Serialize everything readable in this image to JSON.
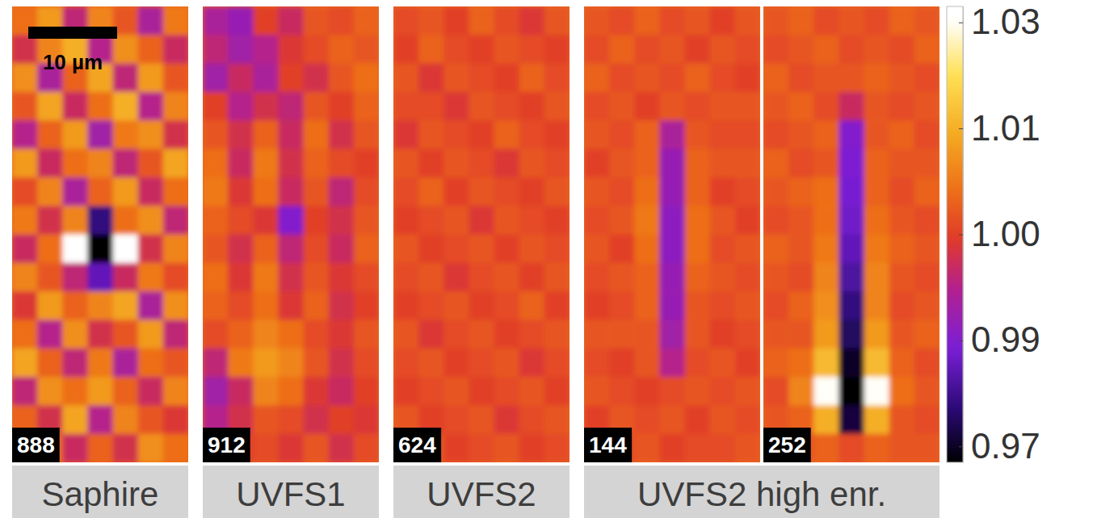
{
  "chart_data": {
    "type": "heatmap",
    "scale_bar_label": "10 µm",
    "colorbar_range": [
      0.965,
      1.035
    ],
    "colorbar_ticks": [
      0.97,
      0.99,
      {
        "value": 1.0,
        "label": "1.00"
      },
      1.01,
      1.03
    ],
    "groups": [
      {
        "label": "Saphire",
        "panels": [
          {
            "label": "888",
            "cells": [
              [
                1.004,
                1.008,
                0.996,
                1.006,
                1.002,
                0.994,
                1.005
              ],
              [
                0.998,
                1.006,
                1.01,
                0.995,
                1.007,
                1.003,
                0.997
              ],
              [
                1.007,
                0.994,
                1.003,
                1.009,
                0.996,
                1.008,
                1.002
              ],
              [
                1.002,
                1.009,
                0.997,
                1.004,
                1.01,
                0.995,
                1.006
              ],
              [
                0.995,
                1.003,
                1.008,
                0.993,
                1.005,
                1.007,
                0.998
              ],
              [
                1.008,
                0.997,
                1.004,
                1.006,
                0.996,
                1.002,
                1.009
              ],
              [
                1.001,
                1.006,
                0.994,
                1.003,
                1.008,
                0.997,
                1.004
              ],
              [
                1.005,
                0.998,
                1.006,
                0.978,
                1.004,
                1.007,
                0.996
              ],
              [
                0.997,
                1.004,
                1.035,
                0.965,
                1.035,
                0.998,
                1.006
              ],
              [
                1.006,
                1.002,
                0.996,
                0.985,
                0.997,
                1.005,
                1.001
              ],
              [
                0.999,
                1.008,
                1.003,
                1.006,
                1.009,
                0.994,
                1.007
              ],
              [
                1.004,
                0.995,
                1.007,
                0.998,
                1.002,
                1.008,
                0.996
              ],
              [
                1.009,
                1.003,
                0.996,
                1.005,
                0.994,
                1.004,
                1.002
              ],
              [
                0.996,
                1.007,
                1.004,
                1.008,
                1.003,
                0.997,
                1.006
              ],
              [
                1.003,
                0.998,
                1.009,
                0.995,
                1.006,
                1.002,
                0.999
              ],
              [
                1.006,
                1.004,
                0.997,
                1.003,
                0.998,
                1.007,
                1.004
              ]
            ]
          }
        ]
      },
      {
        "label": "UVFS1",
        "panels": [
          {
            "label": "912",
            "cells": [
              [
                0.994,
                0.992,
                1.0,
                0.997,
                1.002,
                1.001,
                1.003
              ],
              [
                0.996,
                0.993,
                0.995,
                0.999,
                1.001,
                1.003,
                1.002
              ],
              [
                0.993,
                0.997,
                0.994,
                1.0,
                0.998,
                1.002,
                1.004
              ],
              [
                1.0,
                0.995,
                0.998,
                0.996,
                1.002,
                1.0,
                1.003
              ],
              [
                1.002,
                0.998,
                1.003,
                0.997,
                1.004,
                0.998,
                1.002
              ],
              [
                1.004,
                0.997,
                1.005,
                0.998,
                1.003,
                1.001,
                1.0
              ],
              [
                1.005,
                0.999,
                1.004,
                0.997,
                1.002,
                0.996,
                1.001
              ],
              [
                1.003,
                1.001,
                0.999,
                0.99,
                1.0,
                0.998,
                1.002
              ],
              [
                1.002,
                0.998,
                1.003,
                0.996,
                1.001,
                0.997,
                1.003
              ],
              [
                1.004,
                0.999,
                1.005,
                0.998,
                1.002,
                0.999,
                1.001
              ],
              [
                1.003,
                1.001,
                1.004,
                0.999,
                1.003,
                0.998,
                1.0
              ],
              [
                1.001,
                1.003,
                1.006,
                1.004,
                1.001,
                0.999,
                1.002
              ],
              [
                0.996,
                1.005,
                1.008,
                1.006,
                1.002,
                0.998,
                1.001
              ],
              [
                0.993,
                0.997,
                1.006,
                1.004,
                0.999,
                0.997,
                1.0
              ],
              [
                0.995,
                0.998,
                1.002,
                1.001,
                0.998,
                1.0,
                0.999
              ],
              [
                0.997,
                1.0,
                1.001,
                0.999,
                1.002,
                0.998,
                1.001
              ]
            ]
          }
        ]
      },
      {
        "label": "UVFS2",
        "panels": [
          {
            "label": "624",
            "cells": [
              [
                1.001,
                1.002,
                1.0,
                1.003,
                1.001,
                0.999,
                1.002
              ],
              [
                1.0,
                1.003,
                1.001,
                1.0,
                1.002,
                1.001,
                1.0
              ],
              [
                1.002,
                0.999,
                1.002,
                1.001,
                1.0,
                1.003,
                1.001
              ],
              [
                1.001,
                1.001,
                0.999,
                1.002,
                1.001,
                1.0,
                1.002
              ],
              [
                0.999,
                1.002,
                1.001,
                1.0,
                1.003,
                1.001,
                1.0
              ],
              [
                1.002,
                1.0,
                1.002,
                1.001,
                0.999,
                1.002,
                1.001
              ],
              [
                1.001,
                1.003,
                1.0,
                1.002,
                1.001,
                1.0,
                1.002
              ],
              [
                1.0,
                1.001,
                1.002,
                0.999,
                1.002,
                1.001,
                1.0
              ],
              [
                1.002,
                1.0,
                1.001,
                1.002,
                1.0,
                1.002,
                1.001
              ],
              [
                1.001,
                1.002,
                0.999,
                1.001,
                1.002,
                1.0,
                1.002
              ],
              [
                1.0,
                1.001,
                1.002,
                1.0,
                1.001,
                1.003,
                1.0
              ],
              [
                1.002,
                0.999,
                1.001,
                1.002,
                1.0,
                1.001,
                1.002
              ],
              [
                1.001,
                1.002,
                1.0,
                1.001,
                1.002,
                0.999,
                1.001
              ],
              [
                1.0,
                1.001,
                1.002,
                1.0,
                1.001,
                1.002,
                1.0
              ],
              [
                1.002,
                1.0,
                1.001,
                1.002,
                0.999,
                1.001,
                1.002
              ],
              [
                1.001,
                1.002,
                1.0,
                1.001,
                1.002,
                1.0,
                1.001
              ]
            ]
          }
        ]
      },
      {
        "label": "UVFS2 high enr.",
        "panels": [
          {
            "label": "144",
            "cells": [
              [
                1.002,
                1.001,
                1.003,
                1.001,
                1.002,
                1.0,
                1.002
              ],
              [
                1.001,
                1.003,
                1.001,
                1.002,
                1.0,
                1.002,
                1.001
              ],
              [
                1.003,
                1.001,
                1.002,
                1.001,
                1.003,
                1.001,
                1.0
              ],
              [
                1.001,
                1.002,
                1.0,
                1.002,
                1.001,
                1.002,
                1.002
              ],
              [
                1.002,
                1.001,
                1.003,
                0.994,
                1.002,
                1.001,
                1.001
              ],
              [
                1.0,
                1.002,
                1.003,
                0.992,
                1.003,
                1.002,
                1.002
              ],
              [
                1.002,
                1.001,
                1.004,
                0.992,
                1.003,
                1.0,
                1.001
              ],
              [
                1.001,
                1.002,
                1.005,
                0.991,
                1.004,
                1.002,
                1.0
              ],
              [
                1.002,
                1.0,
                1.004,
                0.991,
                1.004,
                1.001,
                1.002
              ],
              [
                1.001,
                1.002,
                1.003,
                0.992,
                1.003,
                1.002,
                1.001
              ],
              [
                1.0,
                1.001,
                1.003,
                0.992,
                1.002,
                1.001,
                1.002
              ],
              [
                1.002,
                1.002,
                1.002,
                0.993,
                1.002,
                1.0,
                1.001
              ],
              [
                1.001,
                1.0,
                1.002,
                0.995,
                1.001,
                1.002,
                1.0
              ],
              [
                1.002,
                1.001,
                1.0,
                1.001,
                1.002,
                1.001,
                1.002
              ],
              [
                1.0,
                1.002,
                1.001,
                1.002,
                1.0,
                1.002,
                1.001
              ],
              [
                1.001,
                1.001,
                1.002,
                1.0,
                1.001,
                1.001,
                1.002
              ]
            ]
          },
          {
            "label": "252",
            "cells": [
              [
                1.002,
                1.003,
                1.001,
                1.002,
                1.001,
                1.003,
                1.002
              ],
              [
                1.001,
                1.002,
                1.003,
                1.001,
                1.002,
                1.001,
                1.003
              ],
              [
                1.003,
                1.001,
                1.002,
                1.002,
                1.003,
                1.002,
                1.001
              ],
              [
                1.002,
                1.003,
                1.001,
                0.997,
                1.002,
                1.001,
                1.002
              ],
              [
                1.001,
                1.002,
                1.003,
                0.99,
                1.002,
                1.003,
                1.001
              ],
              [
                1.003,
                1.001,
                1.002,
                0.989,
                1.003,
                1.002,
                1.002
              ],
              [
                1.002,
                1.003,
                1.004,
                0.988,
                1.003,
                1.001,
                1.003
              ],
              [
                1.001,
                1.002,
                1.004,
                0.987,
                1.004,
                1.002,
                1.001
              ],
              [
                1.003,
                1.002,
                1.005,
                0.985,
                1.005,
                1.003,
                1.002
              ],
              [
                1.002,
                1.001,
                1.006,
                0.982,
                1.006,
                1.002,
                1.001
              ],
              [
                1.001,
                1.003,
                1.007,
                0.978,
                1.006,
                1.001,
                1.002
              ],
              [
                1.002,
                1.002,
                1.008,
                0.975,
                1.008,
                1.002,
                1.003
              ],
              [
                1.003,
                1.004,
                1.012,
                0.97,
                1.012,
                1.003,
                1.001
              ],
              [
                1.001,
                1.006,
                1.03,
                0.965,
                1.03,
                1.004,
                1.002
              ],
              [
                1.002,
                1.003,
                1.01,
                0.972,
                1.01,
                1.002,
                1.001
              ],
              [
                1.001,
                1.002,
                1.003,
                1.001,
                1.003,
                1.002,
                1.002
              ]
            ]
          }
        ]
      }
    ]
  }
}
